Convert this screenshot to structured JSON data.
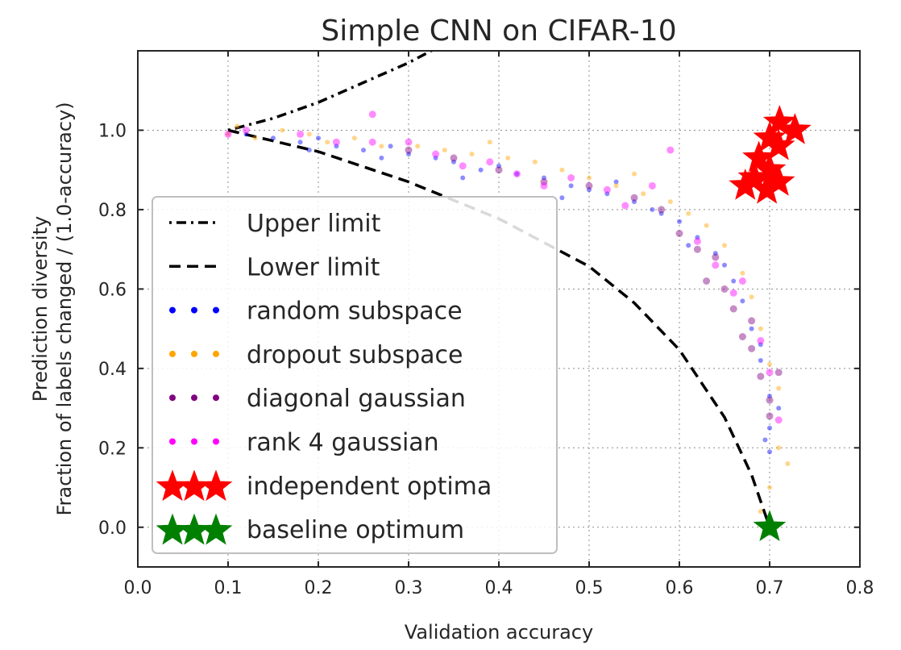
{
  "chart_data": {
    "type": "scatter",
    "title": "Simple CNN on CIFAR-10",
    "xlabel": "Validation accuracy",
    "ylabel_lines": [
      "Prediction diversity",
      "Fraction of labels changed / (1.0-accuracy)"
    ],
    "xlim": [
      0.0,
      0.8
    ],
    "ylim": [
      -0.1,
      1.2
    ],
    "x_ticks": [
      "0.0",
      "0.1",
      "0.2",
      "0.3",
      "0.4",
      "0.5",
      "0.6",
      "0.7",
      "0.8"
    ],
    "y_ticks": [
      "0.0",
      "0.2",
      "0.4",
      "0.6",
      "0.8",
      "1.0"
    ],
    "grid": true,
    "legend_position": "center-left",
    "series": [
      {
        "name": "Upper limit",
        "kind": "line",
        "style": "dashdot",
        "color": "#000000",
        "points": [
          [
            0.1,
            1.0
          ],
          [
            0.15,
            1.03
          ],
          [
            0.2,
            1.07
          ],
          [
            0.25,
            1.12
          ],
          [
            0.3,
            1.17
          ],
          [
            0.35,
            1.23
          ],
          [
            0.4,
            1.29
          ],
          [
            0.45,
            1.35
          ]
        ]
      },
      {
        "name": "Lower limit",
        "kind": "line",
        "style": "dashed",
        "color": "#000000",
        "points": [
          [
            0.1,
            1.0
          ],
          [
            0.2,
            0.946
          ],
          [
            0.3,
            0.87
          ],
          [
            0.4,
            0.777
          ],
          [
            0.5,
            0.657
          ],
          [
            0.55,
            0.565
          ],
          [
            0.6,
            0.447
          ],
          [
            0.65,
            0.277
          ],
          [
            0.68,
            0.132
          ],
          [
            0.7,
            0.0
          ]
        ]
      },
      {
        "name": "random subspace",
        "kind": "scatter",
        "color": "#0000ff",
        "points": [
          [
            0.12,
            0.99
          ],
          [
            0.15,
            0.98
          ],
          [
            0.18,
            0.97
          ],
          [
            0.2,
            0.98
          ],
          [
            0.22,
            0.96
          ],
          [
            0.25,
            0.95
          ],
          [
            0.28,
            0.96
          ],
          [
            0.3,
            0.94
          ],
          [
            0.33,
            0.93
          ],
          [
            0.35,
            0.92
          ],
          [
            0.38,
            0.9
          ],
          [
            0.4,
            0.91
          ],
          [
            0.42,
            0.89
          ],
          [
            0.45,
            0.88
          ],
          [
            0.48,
            0.86
          ],
          [
            0.5,
            0.85
          ],
          [
            0.52,
            0.84
          ],
          [
            0.55,
            0.82
          ],
          [
            0.57,
            0.8
          ],
          [
            0.6,
            0.77
          ],
          [
            0.62,
            0.73
          ],
          [
            0.64,
            0.69
          ],
          [
            0.66,
            0.62
          ],
          [
            0.67,
            0.57
          ],
          [
            0.68,
            0.5
          ],
          [
            0.69,
            0.42
          ],
          [
            0.7,
            0.33
          ],
          [
            0.7,
            0.25
          ],
          [
            0.7,
            0.19
          ],
          [
            0.71,
            0.3
          ],
          [
            0.69,
            0.46
          ],
          [
            0.65,
            0.66
          ],
          [
            0.58,
            0.79
          ],
          [
            0.47,
            0.83
          ],
          [
            0.36,
            0.88
          ],
          [
            0.27,
            0.93
          ],
          [
            0.19,
            0.95
          ],
          [
            0.53,
            0.87
          ],
          [
            0.61,
            0.71
          ],
          [
            0.695,
            0.22
          ]
        ]
      },
      {
        "name": "dropout subspace",
        "kind": "scatter",
        "color": "#ffa500",
        "points": [
          [
            0.1,
            0.99
          ],
          [
            0.11,
            1.01
          ],
          [
            0.13,
            0.98
          ],
          [
            0.16,
            1.0
          ],
          [
            0.19,
            0.99
          ],
          [
            0.21,
            0.97
          ],
          [
            0.24,
            0.98
          ],
          [
            0.27,
            0.96
          ],
          [
            0.31,
            0.96
          ],
          [
            0.34,
            0.95
          ],
          [
            0.37,
            0.94
          ],
          [
            0.41,
            0.93
          ],
          [
            0.44,
            0.92
          ],
          [
            0.47,
            0.9
          ],
          [
            0.5,
            0.88
          ],
          [
            0.53,
            0.86
          ],
          [
            0.56,
            0.84
          ],
          [
            0.59,
            0.82
          ],
          [
            0.61,
            0.79
          ],
          [
            0.63,
            0.76
          ],
          [
            0.65,
            0.71
          ],
          [
            0.67,
            0.64
          ],
          [
            0.68,
            0.58
          ],
          [
            0.69,
            0.5
          ],
          [
            0.7,
            0.41
          ],
          [
            0.71,
            0.35
          ],
          [
            0.71,
            0.2
          ],
          [
            0.72,
            0.16
          ],
          [
            0.7,
            0.1
          ],
          [
            0.69,
            0.04
          ],
          [
            0.39,
            0.97
          ],
          [
            0.55,
            0.89
          ]
        ]
      },
      {
        "name": "diagonal gaussian",
        "kind": "scatter",
        "color": "#800080",
        "points": [
          [
            0.3,
            0.95
          ],
          [
            0.35,
            0.93
          ],
          [
            0.4,
            0.9
          ],
          [
            0.45,
            0.87
          ],
          [
            0.5,
            0.86
          ],
          [
            0.55,
            0.83
          ],
          [
            0.58,
            0.8
          ],
          [
            0.6,
            0.74
          ],
          [
            0.62,
            0.7
          ],
          [
            0.64,
            0.68
          ],
          [
            0.65,
            0.6
          ],
          [
            0.66,
            0.55
          ],
          [
            0.67,
            0.48
          ],
          [
            0.68,
            0.45
          ],
          [
            0.69,
            0.38
          ],
          [
            0.7,
            0.32
          ],
          [
            0.7,
            0.28
          ],
          [
            0.71,
            0.39
          ],
          [
            0.68,
            0.52
          ],
          [
            0.63,
            0.62
          ]
        ]
      },
      {
        "name": "rank 4 gaussian",
        "kind": "scatter",
        "color": "#ff00ff",
        "points": [
          [
            0.1,
            0.99
          ],
          [
            0.12,
            1.0
          ],
          [
            0.18,
            0.99
          ],
          [
            0.22,
            0.97
          ],
          [
            0.26,
            0.97
          ],
          [
            0.3,
            0.97
          ],
          [
            0.33,
            0.94
          ],
          [
            0.36,
            0.91
          ],
          [
            0.39,
            0.92
          ],
          [
            0.42,
            0.89
          ],
          [
            0.45,
            0.86
          ],
          [
            0.48,
            0.88
          ],
          [
            0.52,
            0.85
          ],
          [
            0.54,
            0.81
          ],
          [
            0.57,
            0.86
          ],
          [
            0.59,
            0.95
          ],
          [
            0.62,
            0.72
          ],
          [
            0.64,
            0.66
          ],
          [
            0.66,
            0.59
          ],
          [
            0.67,
            0.62
          ],
          [
            0.69,
            0.47
          ],
          [
            0.7,
            0.39
          ],
          [
            0.71,
            0.27
          ],
          [
            0.26,
            1.04
          ]
        ]
      },
      {
        "name": "independent optima",
        "kind": "star",
        "color": "#ff0000",
        "points": [
          [
            0.711,
            1.02
          ],
          [
            0.728,
            1.0
          ],
          [
            0.7,
            0.98
          ],
          [
            0.688,
            0.93
          ],
          [
            0.71,
            0.96
          ],
          [
            0.7,
            0.9
          ],
          [
            0.683,
            0.88
          ],
          [
            0.71,
            0.87
          ],
          [
            0.673,
            0.86
          ],
          [
            0.697,
            0.85
          ]
        ]
      },
      {
        "name": "baseline optimum",
        "kind": "star",
        "color": "#008000",
        "points": [
          [
            0.7,
            0.0
          ]
        ]
      }
    ]
  }
}
